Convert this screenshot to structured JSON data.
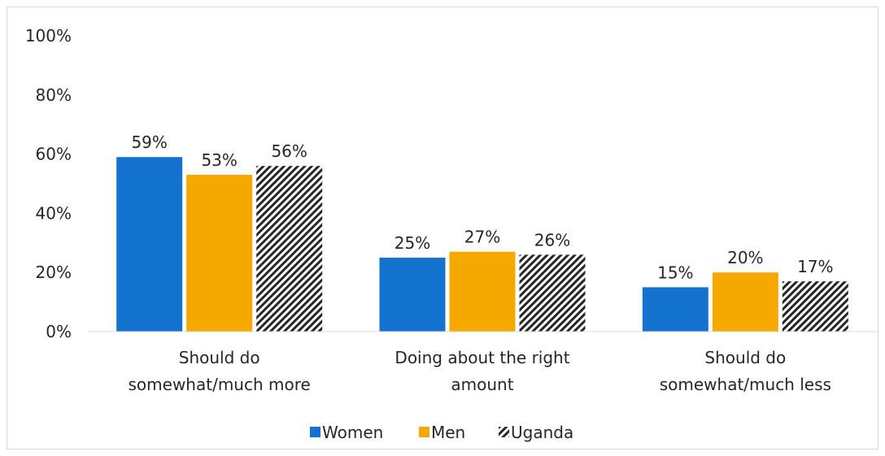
{
  "chart_data": {
    "type": "bar",
    "categories": [
      [
        "Should do",
        "somewhat/much more"
      ],
      [
        "Doing about the right",
        "amount"
      ],
      [
        "Should do",
        "somewhat/much less"
      ]
    ],
    "series": [
      {
        "name": "Women",
        "values": [
          59,
          25,
          15
        ],
        "color": "#1473cf",
        "pattern": "solid"
      },
      {
        "name": "Men",
        "values": [
          53,
          27,
          20
        ],
        "color": "#f5a800",
        "pattern": "solid"
      },
      {
        "name": "Uganda",
        "values": [
          56,
          26,
          17
        ],
        "color": "#262626",
        "pattern": "diagonal-hatch"
      }
    ],
    "y_ticks": [
      "0%",
      "20%",
      "40%",
      "60%",
      "80%",
      "100%"
    ],
    "ylim": [
      0,
      100
    ],
    "value_suffix": "%",
    "grid": false,
    "legend_position": "bottom"
  }
}
